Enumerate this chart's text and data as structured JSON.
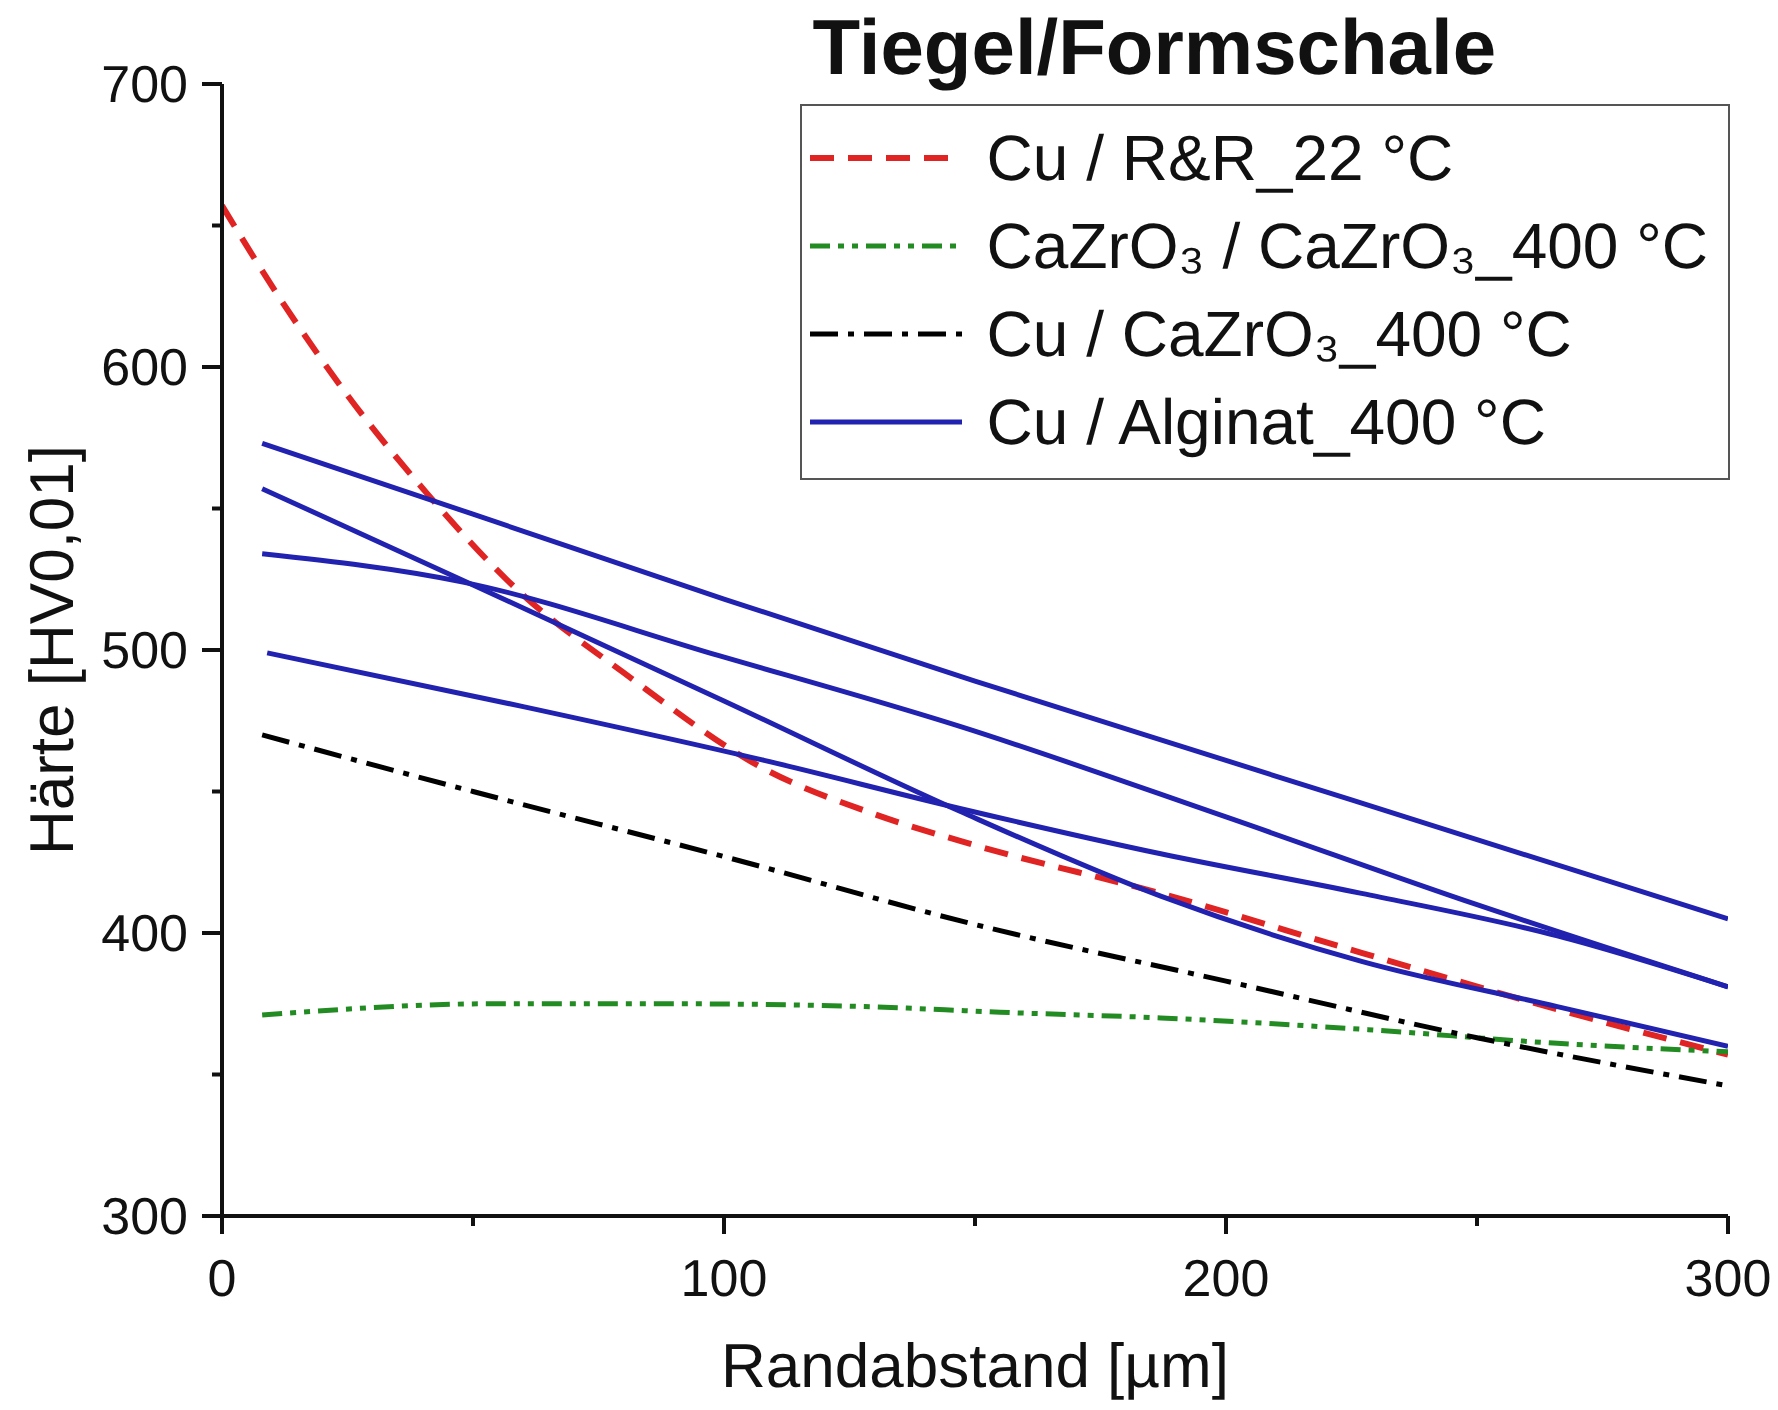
{
  "chart_data": {
    "type": "line",
    "xlabel": "Randabstand [µm]",
    "ylabel": "Härte [HV0,01]",
    "legend_title": "Tiegel/Formschale",
    "legend": "top right",
    "xlim": [
      0,
      300
    ],
    "ylim": [
      300,
      700
    ],
    "xticks": [
      0,
      {
        "value": 50,
        "label": null
      },
      100,
      {
        "value": 150,
        "label": null
      },
      200,
      {
        "value": 250,
        "label": null
      },
      300
    ],
    "yticks": [
      300,
      {
        "value": 350,
        "label": null
      },
      400,
      {
        "value": 450,
        "label": null
      },
      500,
      {
        "value": 550,
        "label": null
      },
      600,
      {
        "value": 650,
        "label": null
      },
      700
    ],
    "series": [
      {
        "name": "Cu / R&R_22 °C",
        "color": "#e02424",
        "line_style": "dashed",
        "x": [
          0,
          12,
          25,
          41,
          59,
          80,
          108,
          130,
          150,
          187,
          227,
          266,
          300
        ],
        "values": [
          657,
          623,
          590,
          555,
          521,
          492,
          458,
          442,
          431,
          414,
          393,
          373,
          357
        ]
      },
      {
        "name": "CaZrO₃ / CaZrO₃_400 °C",
        "color": "#228b22",
        "line_style": "dashdotdot",
        "x": [
          8,
          54,
          88,
          128,
          155,
          187,
          227,
          266,
          300
        ],
        "values": [
          371,
          375,
          375,
          374,
          372,
          370,
          366,
          361,
          358
        ]
      },
      {
        "name": "Cu / CaZrO₃_400 °C",
        "color": "#000000",
        "line_style": "dashdot",
        "x": [
          8,
          50,
          100,
          150,
          200,
          250,
          300
        ],
        "values": [
          470,
          450,
          427,
          403,
          383,
          363,
          346
        ]
      },
      {
        "name": "Cu / Alginat_400 °C",
        "color": "#2222b0",
        "line_style": "solid",
        "x": [
          8,
          50,
          100,
          150,
          200,
          250,
          300
        ],
        "values": [
          573,
          548,
          518,
          489,
          461,
          433,
          405
        ]
      },
      {
        "color": "#2222b0",
        "line_style": "solid",
        "x": [
          8,
          50,
          100,
          147,
          187,
          227,
          266,
          300
        ],
        "values": [
          557,
          523,
          482,
          443,
          413,
          390,
          374,
          360
        ]
      },
      {
        "color": "#2222b0",
        "line_style": "solid",
        "x": [
          8,
          48,
          99,
          147,
          200,
          250,
          300
        ],
        "values": [
          534,
          524,
          498,
          473,
          441,
          410,
          381
        ]
      },
      {
        "color": "#2222b0",
        "line_style": "solid",
        "x": [
          9,
          60,
          108,
          147,
          187,
          227,
          266,
          300
        ],
        "values": [
          499,
          480,
          461,
          444,
          428,
          414,
          399,
          381
        ]
      }
    ]
  }
}
